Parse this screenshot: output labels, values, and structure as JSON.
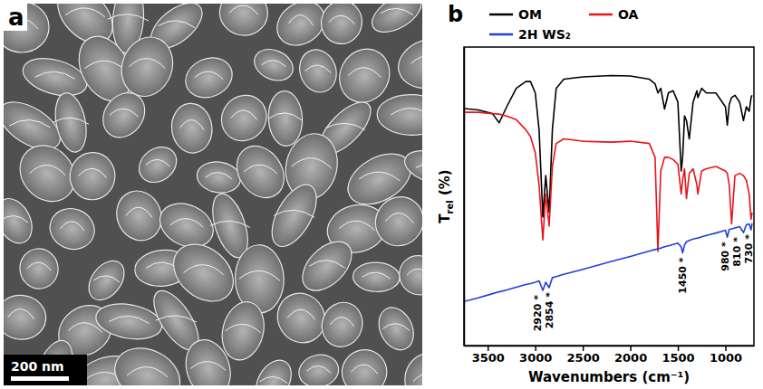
{
  "panel_a": {
    "label": "a",
    "scale_bar": "200 nm"
  },
  "chart_data": {
    "type": "line",
    "panel_label": "b",
    "xlabel": "Wavenumbers (cm⁻¹)",
    "ylabel": [
      "T",
      "rel",
      " (%)"
    ],
    "x": [
      3750,
      3600,
      3450,
      3380,
      3300,
      3200,
      3100,
      3050,
      3000,
      2960,
      2920,
      2890,
      2854,
      2820,
      2780,
      2700,
      2500,
      2200,
      2000,
      1800,
      1740,
      1710,
      1680,
      1640,
      1600,
      1550,
      1500,
      1465,
      1450,
      1430,
      1410,
      1380,
      1340,
      1300,
      1290,
      1250,
      1200,
      1100,
      1000,
      980,
      960,
      935,
      900,
      850,
      810,
      780,
      750,
      730,
      720
    ],
    "xlim": [
      3750,
      700
    ],
    "xticks": [
      3500,
      3000,
      2500,
      2000,
      1500,
      1000
    ],
    "ylim": [
      25,
      90
    ],
    "yticks": [],
    "tick_labels": "x",
    "grid": false,
    "legend": "top",
    "series": [
      {
        "name": "OM",
        "color": "#000000",
        "values": [
          76.6,
          76.3,
          75.5,
          73.5,
          77,
          81,
          82.5,
          82.5,
          80,
          72,
          53,
          62,
          54,
          72,
          81,
          83,
          83.5,
          83.8,
          83.7,
          83,
          82,
          80,
          81,
          76.5,
          80,
          80.5,
          78,
          63,
          66,
          75,
          74,
          70,
          78,
          80.5,
          79,
          81,
          80,
          80,
          77,
          73,
          77.5,
          79,
          79.5,
          78,
          74,
          77,
          76,
          79,
          79.5
        ]
      },
      {
        "name": "OA",
        "color": "#e8141b",
        "values": [
          75.8,
          75.8,
          75.5,
          75.4,
          75,
          74.2,
          72,
          70.5,
          67,
          60,
          48,
          58,
          51,
          64,
          69,
          70,
          69.5,
          69.3,
          69.5,
          69,
          66,
          45.5,
          63,
          66,
          66,
          65.5,
          64.5,
          58,
          61,
          63.5,
          57,
          62.5,
          63.5,
          60,
          58,
          63,
          63.5,
          64,
          63,
          62.5,
          60,
          51.5,
          62,
          62.5,
          62,
          61,
          58,
          52.5,
          54
        ]
      },
      {
        "name": "2H WS₂",
        "color": "#1f3fd6",
        "values": [
          34.6,
          35.4,
          36.3,
          36.7,
          37.1,
          37.7,
          38.3,
          38.5,
          38.8,
          39.1,
          37,
          38.8,
          37.6,
          39.8,
          40,
          40.5,
          41.6,
          43.3,
          44.4,
          45.6,
          45.9,
          46.1,
          46.2,
          46.5,
          46.7,
          47,
          47.3,
          46.5,
          45.2,
          46.9,
          47.6,
          47.9,
          48.2,
          48.4,
          48.4,
          48.7,
          49,
          49.5,
          50.1,
          48.6,
          50.3,
          50.4,
          50.6,
          50.9,
          49.6,
          51.3,
          51.5,
          50.2,
          51.6
        ]
      }
    ],
    "annotations": [
      {
        "x": 2920,
        "y": 37,
        "text": "2920 *"
      },
      {
        "x": 2854,
        "y": 37.6,
        "text": "2854 *"
      },
      {
        "x": 1450,
        "y": 45.2,
        "text": "1450 *"
      },
      {
        "x": 980,
        "y": 48.6,
        "text": "980 *"
      },
      {
        "x": 810,
        "y": 49.6,
        "text": "810 *"
      },
      {
        "x": 730,
        "y": 50.2,
        "text": "730 *"
      }
    ]
  }
}
